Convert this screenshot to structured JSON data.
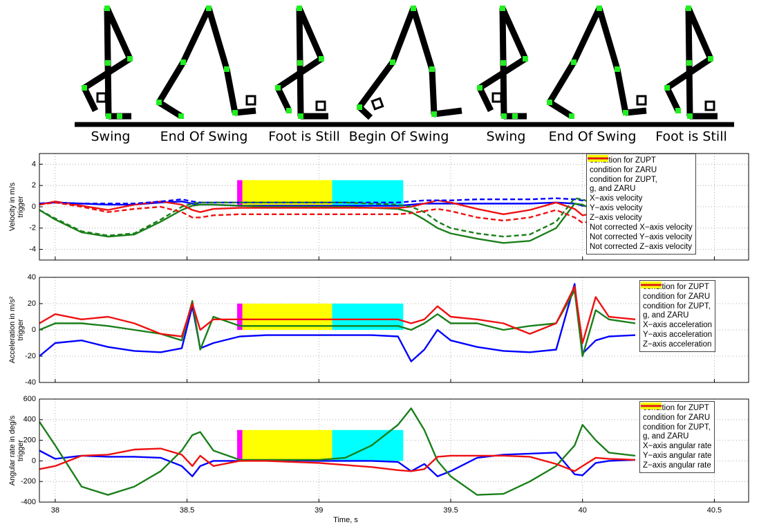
{
  "illustration": {
    "labels": [
      "Swing",
      "End Of Swing",
      "Foot is Still",
      "Begin Of Swing",
      "Swing",
      "End Of Swing",
      "Foot is Still"
    ]
  },
  "chart_data": [
    {
      "type": "line",
      "ylabel": [
        "Velocity in m/s",
        "trigger"
      ],
      "legend": "upper right",
      "grid": true,
      "xtick_labels": false,
      "xlim": [
        37.94,
        40.63
      ],
      "xticks": [
        38,
        38.5,
        39,
        39.5,
        40,
        40.5
      ],
      "ylim": [
        -5,
        5
      ],
      "yticks": [
        -4,
        -2,
        0,
        2,
        4
      ],
      "x": [
        37.94,
        38.0,
        38.1,
        38.2,
        38.3,
        38.4,
        38.48,
        38.52,
        38.55,
        38.6,
        38.7,
        38.8,
        38.9,
        39.0,
        39.1,
        39.2,
        39.3,
        39.35,
        39.4,
        39.45,
        39.5,
        39.6,
        39.7,
        39.8,
        39.9,
        39.97,
        40.0,
        40.05,
        40.1,
        40.2
      ],
      "series": [
        {
          "name": "condition for ZUPT",
          "type": "area",
          "color": "#00ffff",
          "x": [
            39.05,
            39.05,
            39.32,
            39.32
          ],
          "values": [
            0,
            2.5,
            2.5,
            0
          ]
        },
        {
          "name": "condition for ZARU",
          "type": "area",
          "color": "#ff00ff",
          "x": [
            38.69,
            38.69,
            38.71,
            38.71
          ],
          "values": [
            0,
            2.5,
            2.5,
            0
          ]
        },
        {
          "name": "condition for ZUPT,\ng, and ZARU",
          "type": "area",
          "color": "#ffff00",
          "x": [
            38.71,
            38.71,
            39.05,
            39.05
          ],
          "values": [
            0,
            2.5,
            2.5,
            0
          ]
        },
        {
          "name": "X−axis velocity",
          "color": "#0000ff",
          "values": [
            0.3,
            0.4,
            0.3,
            0.2,
            0.2,
            0.4,
            0.5,
            0.3,
            0.2,
            0.2,
            0.1,
            0.1,
            0.1,
            0.1,
            0.1,
            0.1,
            0.1,
            0.2,
            0.3,
            0.3,
            0.3,
            0.3,
            0.3,
            0.3,
            0.4,
            0.3,
            0.1,
            0.0,
            0.1,
            0.2
          ]
        },
        {
          "name": "Y−axis velocity",
          "color": "#1a7f1a",
          "values": [
            -0.3,
            -1.2,
            -2.4,
            -2.8,
            -2.6,
            -1.4,
            -0.3,
            0.1,
            0.2,
            0.2,
            0.1,
            0.0,
            0.0,
            0.0,
            0.0,
            -0.1,
            -0.2,
            -0.5,
            -1.2,
            -2.0,
            -2.5,
            -3.0,
            -3.4,
            -3.2,
            -2.0,
            0.3,
            0.2,
            -0.4,
            -0.5,
            0.0
          ]
        },
        {
          "name": "Z−axis velocity",
          "color": "#ee1111",
          "values": [
            0.2,
            0.5,
            0.1,
            -0.3,
            0.2,
            0.5,
            0.2,
            -0.3,
            -0.5,
            -0.2,
            -0.1,
            -0.1,
            -0.1,
            -0.1,
            -0.1,
            -0.1,
            -0.1,
            0.0,
            0.3,
            0.6,
            0.4,
            -0.2,
            -0.7,
            -0.3,
            0.4,
            -0.2,
            -0.8,
            -0.6,
            -0.2,
            0.3
          ]
        },
        {
          "name": "Not corrected X−axis velocity",
          "color": "#0000ff",
          "dash": true,
          "values": [
            0.3,
            0.4,
            0.3,
            0.3,
            0.3,
            0.5,
            0.7,
            0.5,
            0.4,
            0.4,
            0.4,
            0.4,
            0.4,
            0.4,
            0.4,
            0.4,
            0.4,
            0.5,
            0.6,
            0.6,
            0.6,
            0.7,
            0.7,
            0.7,
            0.8,
            0.7,
            0.6,
            0.5,
            0.5,
            0.6
          ]
        },
        {
          "name": "Not corrected Y−axis velocity",
          "color": "#1a7f1a",
          "dash": true,
          "values": [
            -0.3,
            -1.1,
            -2.3,
            -2.7,
            -2.5,
            -1.2,
            0.0,
            0.3,
            0.4,
            0.4,
            0.4,
            0.4,
            0.4,
            0.4,
            0.4,
            0.3,
            0.2,
            0.0,
            -0.5,
            -1.4,
            -2.0,
            -2.5,
            -2.8,
            -2.6,
            -1.4,
            0.8,
            0.7,
            0.2,
            0.1,
            0.5
          ]
        },
        {
          "name": "Not corrected Z−axis velocity",
          "color": "#ee1111",
          "dash": true,
          "values": [
            0.2,
            0.4,
            0.0,
            -0.5,
            -0.2,
            0.0,
            -0.5,
            -1.0,
            -1.0,
            -0.8,
            -0.7,
            -0.7,
            -0.7,
            -0.7,
            -0.7,
            -0.7,
            -0.7,
            -0.6,
            -0.4,
            -0.2,
            -0.4,
            -1.0,
            -1.3,
            -1.0,
            -0.3,
            -1.0,
            -1.5,
            -1.3,
            -1.0,
            -0.6
          ]
        }
      ]
    },
    {
      "type": "line",
      "ylabel": [
        "Acceleration in m/s²",
        "trigger"
      ],
      "legend": "upper right",
      "grid": true,
      "xtick_labels": false,
      "xlim": [
        37.94,
        40.63
      ],
      "xticks": [
        38,
        38.5,
        39,
        39.5,
        40,
        40.5
      ],
      "ylim": [
        -40,
        40
      ],
      "yticks": [
        -40,
        -20,
        0,
        20,
        40
      ],
      "x": [
        37.94,
        38.0,
        38.1,
        38.2,
        38.3,
        38.4,
        38.48,
        38.52,
        38.55,
        38.6,
        38.7,
        38.8,
        38.9,
        39.0,
        39.1,
        39.2,
        39.3,
        39.35,
        39.4,
        39.45,
        39.5,
        39.6,
        39.7,
        39.8,
        39.9,
        39.97,
        40.0,
        40.05,
        40.1,
        40.2
      ],
      "series": [
        {
          "name": "condition for ZUPT",
          "type": "area",
          "color": "#00ffff",
          "x": [
            39.05,
            39.05,
            39.32,
            39.32
          ],
          "values": [
            0,
            20,
            20,
            0
          ]
        },
        {
          "name": "condition for ZARU",
          "type": "area",
          "color": "#ff00ff",
          "x": [
            38.69,
            38.69,
            38.71,
            38.71
          ],
          "values": [
            0,
            20,
            20,
            0
          ]
        },
        {
          "name": "condition for ZUPT,\ng, and ZARU",
          "type": "area",
          "color": "#ffff00",
          "x": [
            38.71,
            38.71,
            39.05,
            39.05
          ],
          "values": [
            0,
            20,
            20,
            0
          ]
        },
        {
          "name": "X−axis acceleration",
          "color": "#0000ff",
          "values": [
            -20,
            -10,
            -8,
            -13,
            -16,
            -17,
            -14,
            18,
            -14,
            -10,
            -5,
            -4,
            -4,
            -4,
            -4,
            -4,
            -5,
            -24,
            -15,
            0,
            -8,
            -13,
            -16,
            -17,
            -15,
            35,
            -18,
            -8,
            -5,
            -4
          ]
        },
        {
          "name": "Y−axis acceleration",
          "color": "#1a7f1a",
          "values": [
            0,
            5,
            5,
            3,
            0,
            -3,
            -8,
            22,
            -15,
            10,
            3,
            3,
            3,
            3,
            3,
            3,
            3,
            0,
            5,
            12,
            5,
            5,
            0,
            3,
            5,
            30,
            -20,
            15,
            8,
            5
          ]
        },
        {
          "name": "Z−axis acceleration",
          "color": "#ee1111",
          "values": [
            5,
            12,
            8,
            10,
            5,
            -3,
            -5,
            20,
            0,
            8,
            8,
            8,
            8,
            8,
            8,
            8,
            8,
            5,
            8,
            18,
            10,
            8,
            5,
            -3,
            5,
            33,
            -10,
            25,
            10,
            8
          ]
        }
      ]
    },
    {
      "type": "line",
      "ylabel": [
        "Angular rate in deg/s",
        "trigger"
      ],
      "xlabel": "Time, s",
      "legend": "upper right",
      "grid": true,
      "xtick_labels": true,
      "xlim": [
        37.94,
        40.63
      ],
      "xticks": [
        38,
        38.5,
        39,
        39.5,
        40,
        40.5
      ],
      "ylim": [
        -400,
        600
      ],
      "yticks": [
        -400,
        -200,
        0,
        200,
        400,
        600
      ],
      "x": [
        37.94,
        38.0,
        38.1,
        38.2,
        38.3,
        38.4,
        38.48,
        38.52,
        38.55,
        38.6,
        38.7,
        38.8,
        38.9,
        39.0,
        39.1,
        39.2,
        39.3,
        39.35,
        39.4,
        39.45,
        39.5,
        39.6,
        39.7,
        39.8,
        39.9,
        39.97,
        40.0,
        40.05,
        40.1,
        40.2
      ],
      "series": [
        {
          "name": "condition for ZUPT",
          "type": "area",
          "color": "#00ffff",
          "x": [
            39.05,
            39.05,
            39.32,
            39.32
          ],
          "values": [
            0,
            300,
            300,
            0
          ]
        },
        {
          "name": "condition for ZARU",
          "type": "area",
          "color": "#ff00ff",
          "x": [
            38.69,
            38.69,
            38.71,
            38.71
          ],
          "values": [
            0,
            300,
            300,
            0
          ]
        },
        {
          "name": "condition for ZUPT,\ng, and ZARU",
          "type": "area",
          "color": "#ffff00",
          "x": [
            38.71,
            38.71,
            39.05,
            39.05
          ],
          "values": [
            0,
            300,
            300,
            0
          ]
        },
        {
          "name": "X−axis angular rate",
          "color": "#0000ff",
          "values": [
            100,
            20,
            50,
            40,
            40,
            30,
            -50,
            -150,
            -50,
            0,
            0,
            5,
            5,
            0,
            0,
            0,
            -10,
            -100,
            -30,
            -150,
            -100,
            30,
            60,
            70,
            80,
            -130,
            -140,
            -20,
            0,
            10
          ]
        },
        {
          "name": "Y−axis angular rate",
          "color": "#1a7f1a",
          "values": [
            380,
            150,
            -250,
            -330,
            -250,
            -100,
            100,
            250,
            280,
            100,
            10,
            10,
            10,
            10,
            30,
            150,
            350,
            510,
            300,
            0,
            -150,
            -330,
            -320,
            -200,
            -50,
            150,
            350,
            200,
            80,
            50
          ]
        },
        {
          "name": "Z−axis angular rate",
          "color": "#ee1111",
          "values": [
            -80,
            -50,
            50,
            60,
            110,
            120,
            60,
            -50,
            50,
            -50,
            0,
            0,
            -10,
            -20,
            -40,
            -60,
            -90,
            -100,
            -80,
            40,
            50,
            50,
            50,
            40,
            -30,
            -100,
            -50,
            30,
            20,
            10
          ]
        }
      ]
    }
  ]
}
